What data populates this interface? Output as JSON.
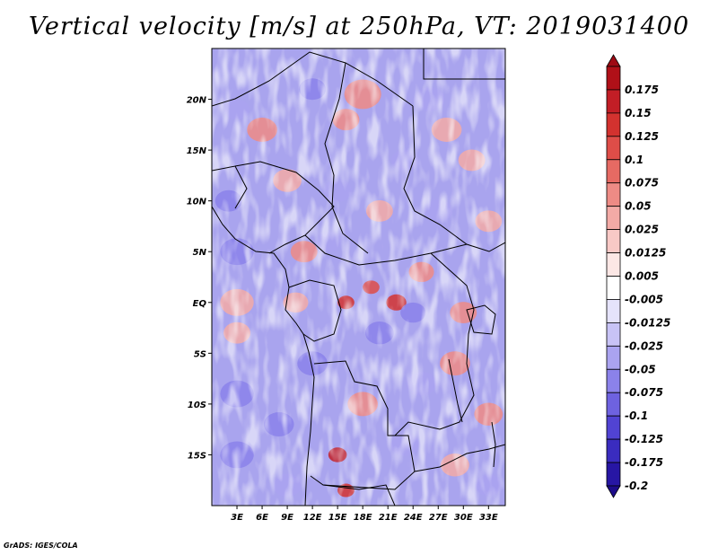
{
  "title": "Vertical velocity [m/s] at 250hPa, VT: 2019031400",
  "credit": "GrADS: IGES/COLA",
  "map": {
    "lon_range": [
      0,
      35
    ],
    "lat_range": [
      -20,
      25
    ],
    "lat_ticks": [
      {
        "value": 20,
        "label": "20N"
      },
      {
        "value": 15,
        "label": "15N"
      },
      {
        "value": 10,
        "label": "10N"
      },
      {
        "value": 5,
        "label": "5N"
      },
      {
        "value": 0,
        "label": "EQ"
      },
      {
        "value": -5,
        "label": "5S"
      },
      {
        "value": -10,
        "label": "10S"
      },
      {
        "value": -15,
        "label": "15S"
      }
    ],
    "lon_ticks": [
      {
        "value": 3,
        "label": "3E"
      },
      {
        "value": 6,
        "label": "6E"
      },
      {
        "value": 9,
        "label": "9E"
      },
      {
        "value": 12,
        "label": "12E"
      },
      {
        "value": 15,
        "label": "15E"
      },
      {
        "value": 18,
        "label": "18E"
      },
      {
        "value": 21,
        "label": "21E"
      },
      {
        "value": 24,
        "label": "24E"
      },
      {
        "value": 27,
        "label": "27E"
      },
      {
        "value": 30,
        "label": "30E"
      },
      {
        "value": 33,
        "label": "33E"
      }
    ],
    "blobs": [
      {
        "lon": 18,
        "lat": 20.5,
        "r": 2.2,
        "v": 0.06
      },
      {
        "lon": 16,
        "lat": 18,
        "r": 1.6,
        "v": 0.05
      },
      {
        "lon": 6,
        "lat": 17,
        "r": 1.8,
        "v": 0.05
      },
      {
        "lon": 3,
        "lat": 19,
        "r": 1.5,
        "v": -0.05
      },
      {
        "lon": 12,
        "lat": 21,
        "r": 1.6,
        "v": -0.06
      },
      {
        "lon": 26,
        "lat": 20,
        "r": 1.8,
        "v": -0.04
      },
      {
        "lon": 28,
        "lat": 17,
        "r": 1.8,
        "v": 0.04
      },
      {
        "lon": 23,
        "lat": 14,
        "r": 1.6,
        "v": -0.05
      },
      {
        "lon": 31,
        "lat": 14,
        "r": 1.6,
        "v": 0.04
      },
      {
        "lon": 9,
        "lat": 12,
        "r": 1.7,
        "v": 0.04
      },
      {
        "lon": 15,
        "lat": 11,
        "r": 1.7,
        "v": -0.05
      },
      {
        "lon": 2,
        "lat": 10,
        "r": 1.6,
        "v": -0.06
      },
      {
        "lon": 20,
        "lat": 9,
        "r": 1.6,
        "v": 0.04
      },
      {
        "lon": 27,
        "lat": 9,
        "r": 1.7,
        "v": -0.05
      },
      {
        "lon": 33,
        "lat": 8,
        "r": 1.6,
        "v": 0.04
      },
      {
        "lon": 3,
        "lat": 5,
        "r": 2.0,
        "v": -0.07
      },
      {
        "lon": 11,
        "lat": 5,
        "r": 1.6,
        "v": 0.05
      },
      {
        "lon": 14,
        "lat": 6,
        "r": 1.5,
        "v": -0.05
      },
      {
        "lon": 25,
        "lat": 3,
        "r": 1.5,
        "v": 0.06
      },
      {
        "lon": 3,
        "lat": 0,
        "r": 2.0,
        "v": 0.03
      },
      {
        "lon": 10,
        "lat": 0,
        "r": 1.5,
        "v": 0.04
      },
      {
        "lon": 16,
        "lat": 0,
        "r": 1.0,
        "v": 0.14
      },
      {
        "lon": 19,
        "lat": 1.5,
        "r": 1.0,
        "v": 0.12
      },
      {
        "lon": 22,
        "lat": 0,
        "r": 1.2,
        "v": 0.13
      },
      {
        "lon": 24,
        "lat": -1,
        "r": 1.5,
        "v": -0.07
      },
      {
        "lon": 20,
        "lat": -3,
        "r": 1.7,
        "v": -0.06
      },
      {
        "lon": 30,
        "lat": -1,
        "r": 1.6,
        "v": 0.05
      },
      {
        "lon": 3,
        "lat": -3,
        "r": 1.6,
        "v": 0.03
      },
      {
        "lon": 12,
        "lat": -6,
        "r": 1.8,
        "v": -0.06
      },
      {
        "lon": 29,
        "lat": -6,
        "r": 1.8,
        "v": 0.06
      },
      {
        "lon": 3,
        "lat": -9,
        "r": 2.0,
        "v": -0.06
      },
      {
        "lon": 8,
        "lat": -12,
        "r": 1.8,
        "v": -0.06
      },
      {
        "lon": 18,
        "lat": -10,
        "r": 1.8,
        "v": 0.05
      },
      {
        "lon": 25,
        "lat": -8,
        "r": 1.8,
        "v": -0.04
      },
      {
        "lon": 33,
        "lat": -11,
        "r": 1.7,
        "v": 0.05
      },
      {
        "lon": 3,
        "lat": -15,
        "r": 2.0,
        "v": -0.06
      },
      {
        "lon": 15,
        "lat": -15,
        "r": 1.1,
        "v": 0.15
      },
      {
        "lon": 16,
        "lat": -18.5,
        "r": 1.0,
        "v": 0.14
      },
      {
        "lon": 23,
        "lat": -14,
        "r": 1.7,
        "v": -0.05
      },
      {
        "lon": 29,
        "lat": -16,
        "r": 1.7,
        "v": 0.04
      },
      {
        "lon": 9,
        "lat": -18,
        "r": 1.7,
        "v": -0.05
      },
      {
        "lon": 33,
        "lat": -18,
        "r": 1.6,
        "v": -0.05
      }
    ]
  },
  "colorbar": {
    "bins": [
      {
        "color": "#b01018",
        "label": "0.175"
      },
      {
        "color": "#c21e26",
        "label": "0.15"
      },
      {
        "color": "#d3322f",
        "label": "0.125"
      },
      {
        "color": "#de4d48",
        "label": "0.1"
      },
      {
        "color": "#e66a63",
        "label": "0.075"
      },
      {
        "color": "#ee8b85",
        "label": "0.05"
      },
      {
        "color": "#f3aaa6",
        "label": "0.025"
      },
      {
        "color": "#f8c9c6",
        "label": "0.0125"
      },
      {
        "color": "#fce7e5",
        "label": "0.005"
      },
      {
        "color": "#ffffff",
        "label": "-0.005"
      },
      {
        "color": "#e5e3fb",
        "label": "-0.0125"
      },
      {
        "color": "#c8c3f6",
        "label": "-0.025"
      },
      {
        "color": "#aaa3f0",
        "label": "-0.05"
      },
      {
        "color": "#8b82ea",
        "label": "-0.075"
      },
      {
        "color": "#6e62e0",
        "label": "-0.1"
      },
      {
        "color": "#5143d3",
        "label": "-0.125"
      },
      {
        "color": "#3a2cbf",
        "label": "-0.175"
      },
      {
        "color": "#2716a4",
        "label": "-0.2"
      }
    ],
    "top_cap": "#9e0a14",
    "bottom_cap": "#1d0c8a"
  }
}
